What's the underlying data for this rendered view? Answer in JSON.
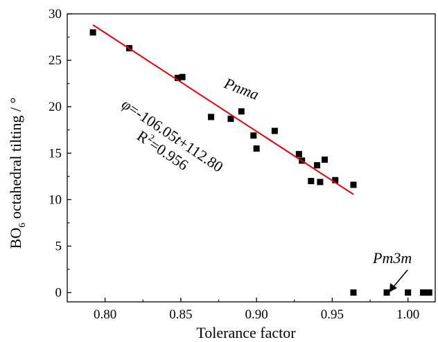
{
  "chart_data": {
    "type": "scatter",
    "xlabel": "Tolerance factor",
    "ylabel": {
      "prefix": "BO",
      "subscript": "6",
      "suffix": " octahedral tilting / °"
    },
    "xlim": [
      0.775,
      1.018
    ],
    "ylim": [
      -1,
      30
    ],
    "xticks": [
      0.8,
      0.85,
      0.9,
      0.95,
      1.0
    ],
    "xtick_labels": [
      "0.80",
      "0.85",
      "0.90",
      "0.95",
      "1.00"
    ],
    "yticks": [
      0,
      5,
      10,
      15,
      20,
      25,
      30
    ],
    "ytick_labels": [
      "0",
      "5",
      "10",
      "15",
      "20",
      "25",
      "30"
    ],
    "series": [
      {
        "marker": "square",
        "color": "#000000",
        "points": [
          [
            0.792,
            28.0
          ],
          [
            0.816,
            26.3
          ],
          [
            0.848,
            23.1
          ],
          [
            0.851,
            23.2
          ],
          [
            0.87,
            18.9
          ],
          [
            0.883,
            18.7
          ],
          [
            0.89,
            19.5
          ],
          [
            0.898,
            16.9
          ],
          [
            0.9,
            15.5
          ],
          [
            0.912,
            17.4
          ],
          [
            0.928,
            14.9
          ],
          [
            0.93,
            14.2
          ],
          [
            0.936,
            12.0
          ],
          [
            0.94,
            13.7
          ],
          [
            0.942,
            11.9
          ],
          [
            0.945,
            14.3
          ],
          [
            0.952,
            12.1
          ],
          [
            0.964,
            11.6
          ],
          [
            0.964,
            0.0
          ],
          [
            0.986,
            0.0
          ],
          [
            1.0,
            0.0
          ],
          [
            1.01,
            0.0
          ],
          [
            1.012,
            0.0
          ],
          [
            1.014,
            0.0
          ]
        ]
      }
    ],
    "fit_line": {
      "color": "#e8000b",
      "slope": -106.05,
      "intercept": 112.8,
      "x_range": [
        0.792,
        0.964
      ]
    },
    "annotations": {
      "phase1": "Pnma",
      "equation": {
        "phi": "φ",
        "eq_mid": "=-106.05",
        "t": "t",
        "eq_end": "+112.80"
      },
      "r2": {
        "r": "R",
        "sup": "2",
        "rest": "=0.956"
      },
      "phase2": "Pm3m"
    },
    "grid": false,
    "legend": "none"
  }
}
